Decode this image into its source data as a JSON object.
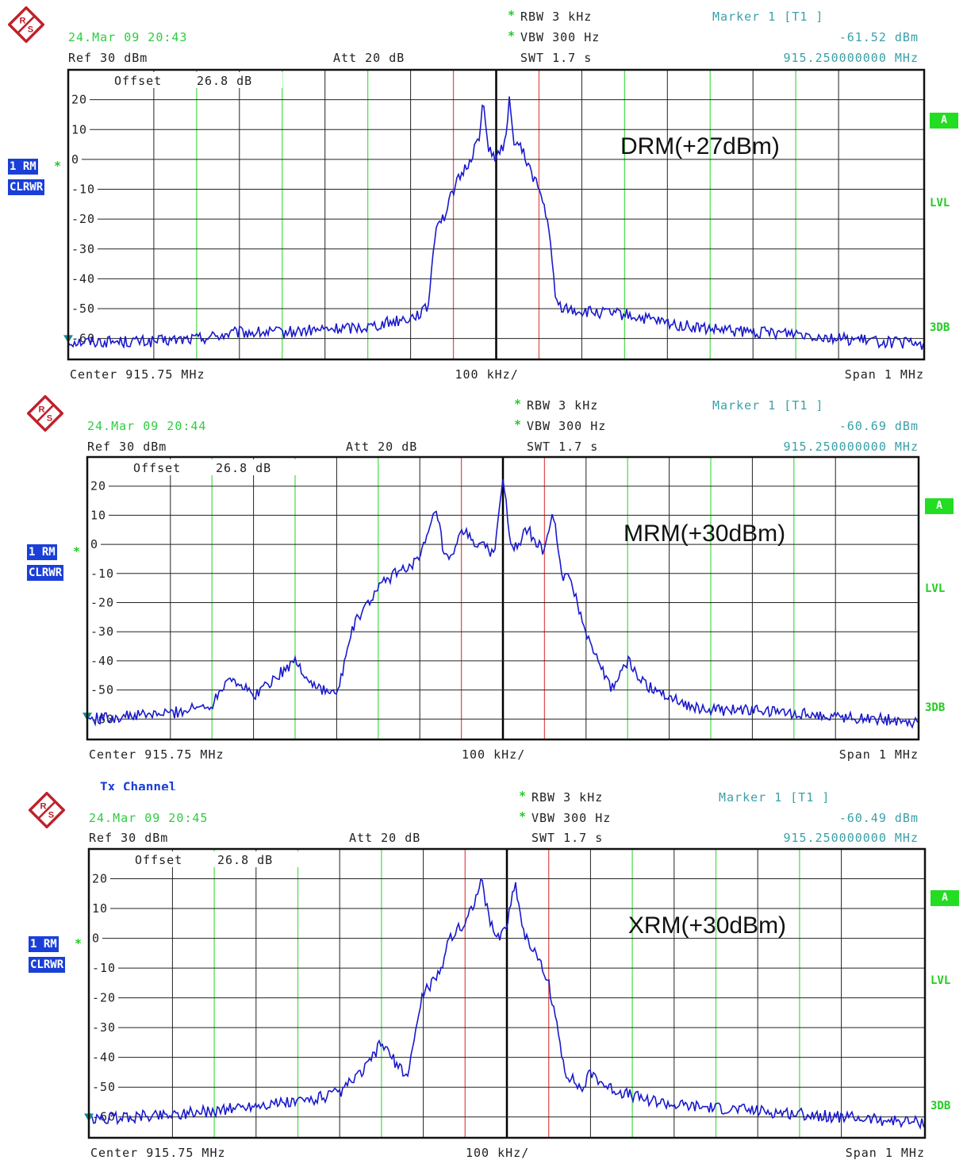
{
  "colors": {
    "trace": "#1a1acc",
    "grid": "#222222",
    "vgrid_green": "#55dd55",
    "vgrid_red": "#e05555",
    "center": "#000000",
    "text_green": "#2ecc40",
    "text_teal": "#3aa0a8",
    "badge": "#1a3fd8"
  },
  "shared": {
    "rbw": "RBW 3 kHz",
    "vbw": "VBW 300 Hz",
    "swt": "SWT 1.7 s",
    "ref": "Ref 30 dBm",
    "att": "Att 20 dB",
    "offset_label": "Offset",
    "offset_value": "26.8 dB",
    "marker_title": "Marker 1 [T1 ]",
    "marker_freq": "915.250000000 MHz",
    "center": "Center 915.75 MHz",
    "per_div": "100 kHz/",
    "span": "Span 1 MHz",
    "badge_rm": "1 RM",
    "badge_clr": "CLRWR",
    "side_a": "A",
    "side_lvl": "LVL",
    "side_3db": "3DB",
    "logo_text": "R&S",
    "y_ticks": [
      "20",
      "10",
      "0",
      "-10",
      "-20",
      "-30",
      "-40",
      "-50",
      "-60"
    ]
  },
  "tx_channel_label": "Tx Channel",
  "chart_data": [
    {
      "type": "line",
      "timestamp": "24.Mar 09 20:43",
      "marker_level": "-61.52 dBm",
      "trace_label": "DRM(+27dBm)",
      "xlim_MHz": [
        915.25,
        916.25
      ],
      "ylim_dB": [
        -67,
        30
      ],
      "x": [
        915.25,
        915.3,
        915.35,
        915.4,
        915.45,
        915.5,
        915.55,
        915.6,
        915.65,
        915.67,
        915.68,
        915.69,
        915.7,
        915.72,
        915.73,
        915.735,
        915.74,
        915.75,
        915.76,
        915.765,
        915.77,
        915.78,
        915.8,
        915.81,
        915.82,
        915.83,
        915.85,
        915.9,
        915.95,
        916.0,
        916.05,
        916.1,
        916.15,
        916.2,
        916.25
      ],
      "y": [
        -61,
        -61,
        -61,
        -60,
        -58,
        -58,
        -57,
        -56,
        -53,
        -50,
        -21,
        -19,
        -10,
        0,
        8,
        19,
        5,
        0,
        5,
        20,
        7,
        3,
        -10,
        -20,
        -48,
        -50,
        -51,
        -52,
        -55,
        -57,
        -58,
        -58,
        -60,
        -61,
        -62
      ]
    },
    {
      "type": "line",
      "timestamp": "24.Mar 09 20:44",
      "marker_level": "-60.69 dBm",
      "trace_label": "MRM(+30dBm)",
      "xlim_MHz": [
        915.25,
        916.25
      ],
      "ylim_dB": [
        -67,
        30
      ],
      "x": [
        915.25,
        915.3,
        915.35,
        915.4,
        915.42,
        915.45,
        915.5,
        915.52,
        915.55,
        915.57,
        915.6,
        915.62,
        915.65,
        915.67,
        915.68,
        915.69,
        915.7,
        915.72,
        915.74,
        915.75,
        915.76,
        915.78,
        915.8,
        915.81,
        915.82,
        915.83,
        915.85,
        915.88,
        915.9,
        915.92,
        915.95,
        915.98,
        916.0,
        916.05,
        916.1,
        916.15,
        916.2,
        916.25
      ],
      "y": [
        -60,
        -59,
        -58,
        -55,
        -45,
        -52,
        -40,
        -48,
        -52,
        -28,
        -15,
        -10,
        -5,
        12,
        -5,
        -5,
        5,
        0,
        -3,
        24,
        -3,
        5,
        -3,
        12,
        -10,
        -12,
        -30,
        -50,
        -40,
        -48,
        -52,
        -56,
        -57,
        -57,
        -58,
        -59,
        -60,
        -61
      ]
    },
    {
      "type": "line",
      "timestamp": "24.Mar 09 20:45",
      "marker_level": "-60.49 dBm",
      "trace_label": "XRM(+30dBm)",
      "xlim_MHz": [
        915.25,
        916.25
      ],
      "ylim_dB": [
        -67,
        30
      ],
      "x": [
        915.25,
        915.3,
        915.35,
        915.4,
        915.45,
        915.5,
        915.55,
        915.58,
        915.6,
        915.63,
        915.65,
        915.67,
        915.68,
        915.7,
        915.72,
        915.73,
        915.74,
        915.75,
        915.76,
        915.77,
        915.78,
        915.8,
        915.82,
        915.84,
        915.85,
        915.87,
        915.9,
        915.95,
        916.0,
        916.05,
        916.1,
        916.15,
        916.2,
        916.25
      ],
      "y": [
        -61,
        -60,
        -59,
        -58,
        -56,
        -55,
        -52,
        -44,
        -35,
        -47,
        -18,
        -12,
        0,
        5,
        19,
        5,
        0,
        5,
        19,
        2,
        -3,
        -15,
        -45,
        -51,
        -45,
        -50,
        -53,
        -56,
        -57,
        -58,
        -59,
        -60,
        -61,
        -62
      ]
    }
  ]
}
